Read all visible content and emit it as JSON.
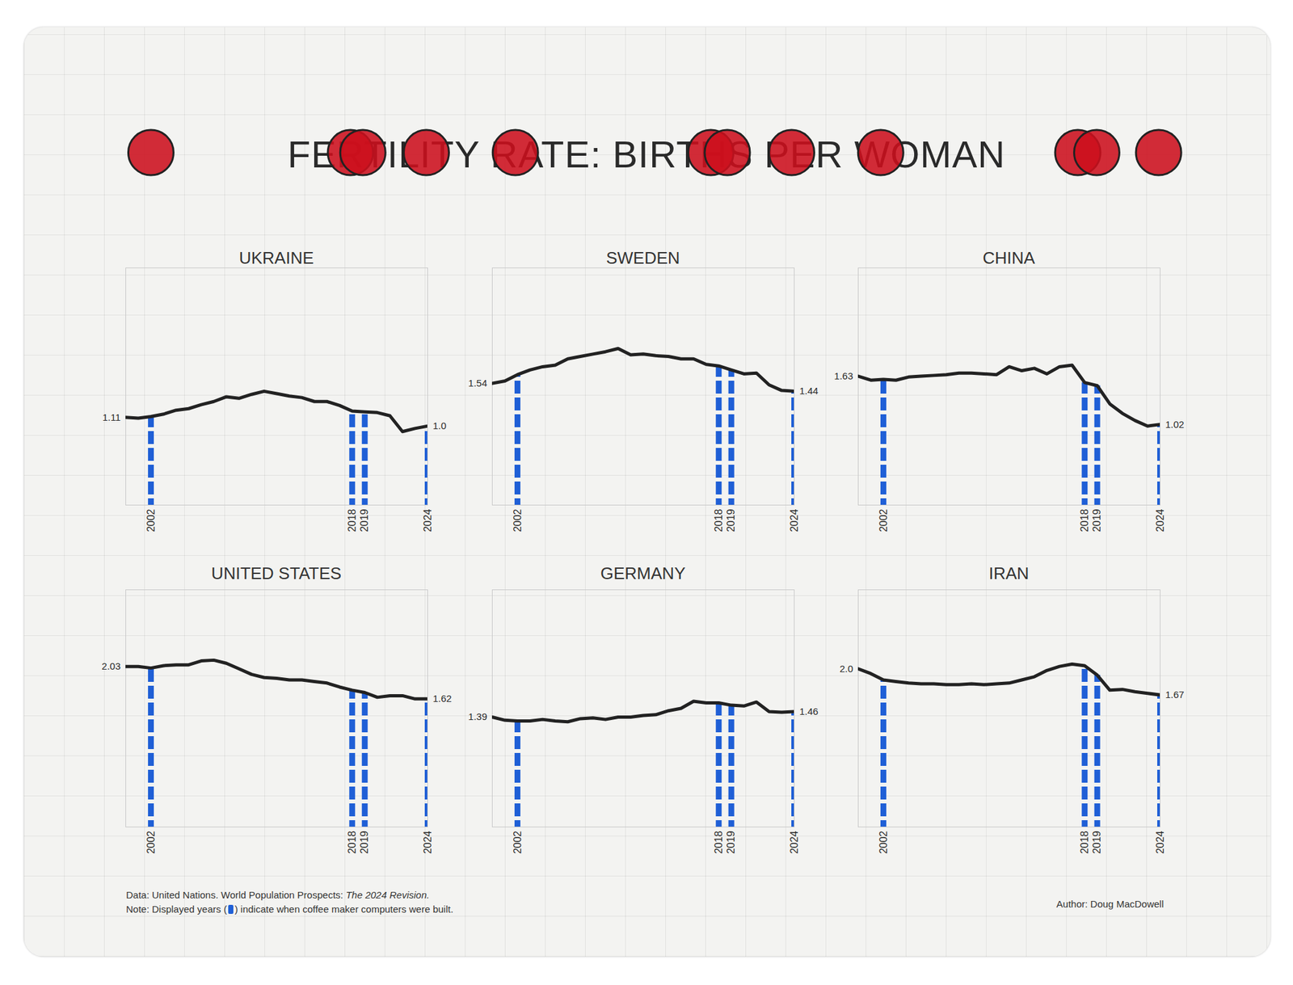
{
  "title": "FERTILITY RATE: BIRTHS PER WOMAN",
  "footer": {
    "source": "Data: United Nations. World Population Prospects:",
    "source_italic": "The 2024 Revision.",
    "note": [
      "Note: Displayed years (",
      ") indicate when coffee maker computers were built."
    ],
    "author": "Author: Doug MacDowell"
  },
  "chart_data": [
    {
      "type": "line",
      "title": "UKRAINE",
      "color": "#222222",
      "x": [
        2000,
        2001,
        2002,
        2003,
        2004,
        2005,
        2006,
        2007,
        2008,
        2009,
        2010,
        2011,
        2012,
        2013,
        2014,
        2015,
        2016,
        2017,
        2018,
        2019,
        2020,
        2021,
        2022,
        2023,
        2024
      ],
      "values": [
        1.11,
        1.1,
        1.12,
        1.15,
        1.2,
        1.22,
        1.27,
        1.31,
        1.37,
        1.35,
        1.4,
        1.44,
        1.41,
        1.38,
        1.36,
        1.31,
        1.31,
        1.26,
        1.19,
        1.18,
        1.17,
        1.13,
        0.93,
        0.97,
        1.0
      ],
      "value_labels": [
        "1.11",
        null,
        null,
        null,
        null,
        null,
        null,
        null,
        null,
        null,
        null,
        null,
        null,
        null,
        null,
        null,
        null,
        null,
        null,
        null,
        null,
        null,
        null,
        null,
        "1.0"
      ],
      "xlim": [
        2000,
        2024
      ],
      "xticks": [
        2002,
        2018,
        2019,
        2024
      ],
      "ylim": [
        0,
        3
      ],
      "tick_labels": "x"
    },
    {
      "type": "line",
      "title": "SWEDEN",
      "color": "#222222",
      "x": [
        2000,
        2001,
        2002,
        2003,
        2004,
        2005,
        2006,
        2007,
        2008,
        2009,
        2010,
        2011,
        2012,
        2013,
        2014,
        2015,
        2016,
        2017,
        2018,
        2019,
        2020,
        2021,
        2022,
        2023,
        2024
      ],
      "values": [
        1.54,
        1.57,
        1.65,
        1.71,
        1.75,
        1.77,
        1.85,
        1.88,
        1.91,
        1.94,
        1.98,
        1.9,
        1.91,
        1.89,
        1.88,
        1.85,
        1.85,
        1.78,
        1.76,
        1.71,
        1.66,
        1.67,
        1.52,
        1.45,
        1.44
      ],
      "value_labels": [
        "1.54",
        null,
        null,
        null,
        null,
        null,
        null,
        null,
        null,
        null,
        null,
        null,
        null,
        null,
        null,
        null,
        null,
        null,
        null,
        null,
        null,
        null,
        null,
        null,
        "1.44"
      ],
      "xlim": [
        2000,
        2024
      ],
      "xticks": [
        2002,
        2018,
        2019,
        2024
      ],
      "ylim": [
        0,
        3
      ],
      "tick_labels": "x"
    },
    {
      "type": "line",
      "title": "CHINA",
      "color": "#222222",
      "x": [
        2000,
        2001,
        2002,
        2003,
        2004,
        2005,
        2006,
        2007,
        2008,
        2009,
        2010,
        2011,
        2012,
        2013,
        2014,
        2015,
        2016,
        2017,
        2018,
        2019,
        2020,
        2021,
        2022,
        2023,
        2024
      ],
      "values": [
        1.63,
        1.58,
        1.59,
        1.58,
        1.62,
        1.63,
        1.64,
        1.65,
        1.67,
        1.67,
        1.66,
        1.65,
        1.75,
        1.7,
        1.73,
        1.66,
        1.75,
        1.77,
        1.55,
        1.51,
        1.28,
        1.16,
        1.07,
        1.0,
        1.02
      ],
      "value_labels": [
        "1.63",
        null,
        null,
        null,
        null,
        null,
        null,
        null,
        null,
        null,
        null,
        null,
        null,
        null,
        null,
        null,
        null,
        null,
        null,
        null,
        null,
        null,
        null,
        null,
        "1.02"
      ],
      "xlim": [
        2000,
        2024
      ],
      "xticks": [
        2002,
        2018,
        2019,
        2024
      ],
      "ylim": [
        0,
        3
      ],
      "tick_labels": "x"
    },
    {
      "type": "line",
      "title": "UNITED STATES",
      "color": "#222222",
      "x": [
        2000,
        2001,
        2002,
        2003,
        2004,
        2005,
        2006,
        2007,
        2008,
        2009,
        2010,
        2011,
        2012,
        2013,
        2014,
        2015,
        2016,
        2017,
        2018,
        2019,
        2020,
        2021,
        2022,
        2023,
        2024
      ],
      "values": [
        2.03,
        2.03,
        2.01,
        2.04,
        2.05,
        2.05,
        2.1,
        2.11,
        2.07,
        2.0,
        1.93,
        1.89,
        1.88,
        1.86,
        1.86,
        1.84,
        1.82,
        1.77,
        1.73,
        1.7,
        1.64,
        1.66,
        1.66,
        1.62,
        1.62
      ],
      "value_labels": [
        "2.03",
        null,
        null,
        null,
        null,
        null,
        null,
        null,
        null,
        null,
        null,
        null,
        null,
        null,
        null,
        null,
        null,
        null,
        null,
        null,
        null,
        null,
        null,
        null,
        "1.62"
      ],
      "xlim": [
        2000,
        2024
      ],
      "xticks": [
        2002,
        2018,
        2019,
        2024
      ],
      "ylim": [
        0,
        3
      ],
      "tick_labels": "x"
    },
    {
      "type": "line",
      "title": "GERMANY",
      "color": "#222222",
      "x": [
        2000,
        2001,
        2002,
        2003,
        2004,
        2005,
        2006,
        2007,
        2008,
        2009,
        2010,
        2011,
        2012,
        2013,
        2014,
        2015,
        2016,
        2017,
        2018,
        2019,
        2020,
        2021,
        2022,
        2023,
        2024
      ],
      "values": [
        1.39,
        1.35,
        1.34,
        1.34,
        1.36,
        1.34,
        1.33,
        1.37,
        1.38,
        1.36,
        1.39,
        1.39,
        1.41,
        1.42,
        1.47,
        1.5,
        1.59,
        1.57,
        1.57,
        1.54,
        1.53,
        1.58,
        1.46,
        1.45,
        1.46
      ],
      "value_labels": [
        "1.39",
        null,
        null,
        null,
        null,
        null,
        null,
        null,
        null,
        null,
        null,
        null,
        null,
        null,
        null,
        null,
        null,
        null,
        null,
        null,
        null,
        null,
        null,
        null,
        "1.46"
      ],
      "xlim": [
        2000,
        2024
      ],
      "xticks": [
        2002,
        2018,
        2019,
        2024
      ],
      "ylim": [
        0,
        3
      ],
      "tick_labels": "x"
    },
    {
      "type": "line",
      "title": "IRAN",
      "color": "#222222",
      "x": [
        2000,
        2001,
        2002,
        2003,
        2004,
        2005,
        2006,
        2007,
        2008,
        2009,
        2010,
        2011,
        2012,
        2013,
        2014,
        2015,
        2016,
        2017,
        2018,
        2019,
        2020,
        2021,
        2022,
        2023,
        2024
      ],
      "values": [
        2.0,
        1.94,
        1.86,
        1.84,
        1.82,
        1.81,
        1.81,
        1.8,
        1.8,
        1.81,
        1.8,
        1.81,
        1.82,
        1.86,
        1.9,
        1.98,
        2.03,
        2.06,
        2.04,
        1.92,
        1.73,
        1.74,
        1.71,
        1.69,
        1.67
      ],
      "value_labels": [
        "2.0",
        null,
        null,
        null,
        null,
        null,
        null,
        null,
        null,
        null,
        null,
        null,
        null,
        null,
        null,
        null,
        null,
        null,
        null,
        null,
        null,
        null,
        null,
        null,
        "1.67"
      ],
      "xlim": [
        2000,
        2024
      ],
      "xticks": [
        2002,
        2018,
        2019,
        2024
      ],
      "ylim": [
        0,
        3
      ],
      "tick_labels": "x"
    }
  ]
}
